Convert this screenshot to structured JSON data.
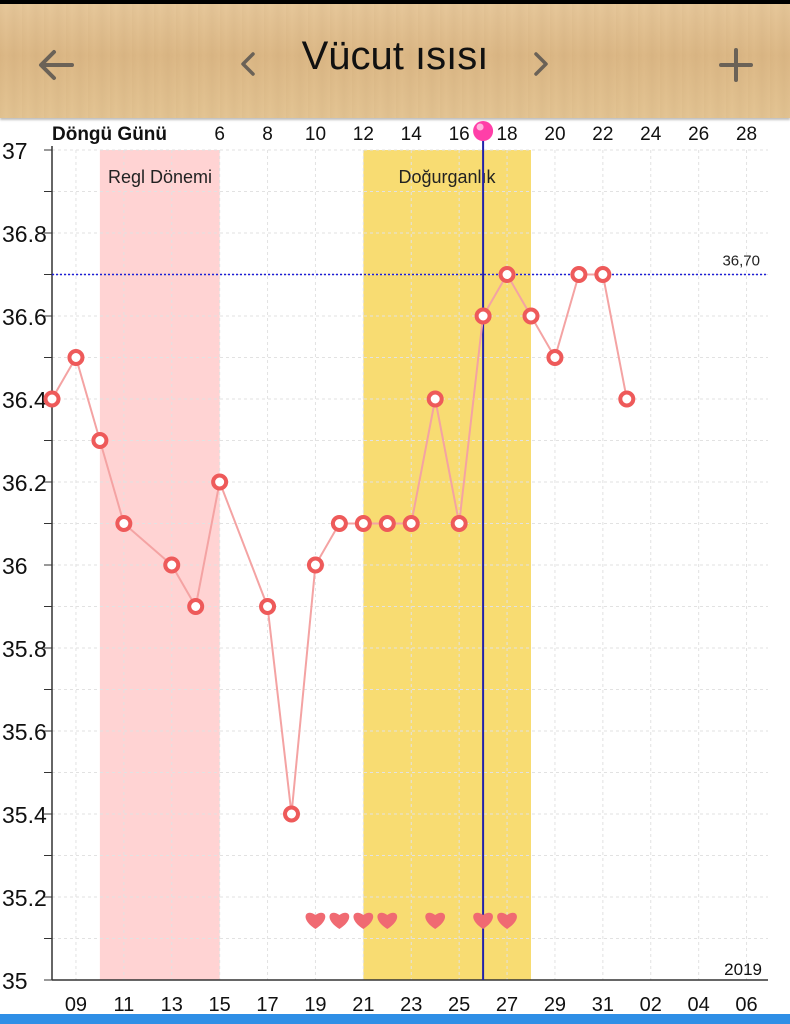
{
  "header": {
    "title": "Vücut ısısı",
    "back_icon": "arrow-left-icon",
    "prev_icon": "chevron-left-icon",
    "next_icon": "chevron-right-icon",
    "add_icon": "plus-icon"
  },
  "chart_data": {
    "type": "line",
    "top_axis_label": "Döngü Günü",
    "cycle_day_ticks": [
      "6",
      "8",
      "10",
      "12",
      "14",
      "16",
      "18",
      "20",
      "22",
      "24",
      "26",
      "28"
    ],
    "date_ticks": [
      "09",
      "11",
      "13",
      "15",
      "17",
      "19",
      "21",
      "23",
      "25",
      "27",
      "29",
      "31",
      "02",
      "04",
      "06"
    ],
    "year_label": "2019",
    "y_ticks": [
      "37",
      "36.8",
      "36.6",
      "36.4",
      "36.2",
      "36",
      "35.8",
      "35.6",
      "35.4",
      "35.2",
      "35"
    ],
    "ylim": [
      35,
      37
    ],
    "grid": true,
    "regions": [
      {
        "label": "Regl Dönemi",
        "from_index": 2,
        "to_index": 7,
        "color": "#ffd3d3"
      },
      {
        "label": "Doğurganlık",
        "from_index": 13,
        "to_index": 20,
        "color": "#f8dc72"
      }
    ],
    "threshold": {
      "value": 36.7,
      "label": "36,70",
      "color": "#1c1cd6"
    },
    "current_day_index": 18,
    "series": [
      {
        "color": "#f07c7c",
        "points": [
          {
            "i": 0,
            "v": 36.4
          },
          {
            "i": 1,
            "v": 36.5
          },
          {
            "i": 2,
            "v": 36.3
          },
          {
            "i": 3,
            "v": 36.1
          },
          {
            "i": 5,
            "v": 36.0
          },
          {
            "i": 6,
            "v": 35.9
          },
          {
            "i": 7,
            "v": 36.2
          },
          {
            "i": 9,
            "v": 35.9
          },
          {
            "i": 10,
            "v": 35.4
          },
          {
            "i": 11,
            "v": 36.0
          },
          {
            "i": 12,
            "v": 36.1
          },
          {
            "i": 13,
            "v": 36.1
          },
          {
            "i": 14,
            "v": 36.1
          },
          {
            "i": 15,
            "v": 36.1
          },
          {
            "i": 16,
            "v": 36.4
          },
          {
            "i": 17,
            "v": 36.1
          },
          {
            "i": 18,
            "v": 36.6
          },
          {
            "i": 19,
            "v": 36.7
          },
          {
            "i": 20,
            "v": 36.6
          },
          {
            "i": 21,
            "v": 36.5
          },
          {
            "i": 22,
            "v": 36.7
          },
          {
            "i": 23,
            "v": 36.7
          },
          {
            "i": 24,
            "v": 36.4
          }
        ]
      }
    ],
    "heart_markers": [
      11,
      12,
      13,
      14,
      16,
      18,
      19
    ]
  }
}
